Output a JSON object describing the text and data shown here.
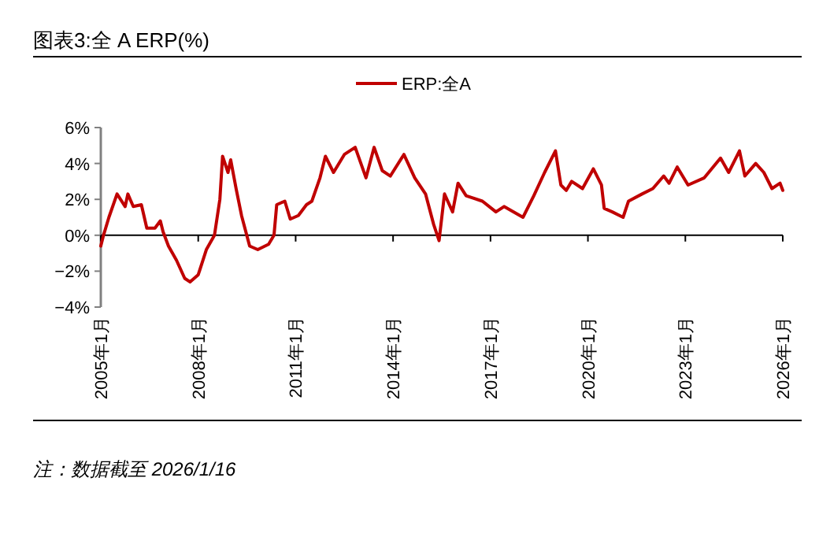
{
  "chart_data": {
    "type": "line",
    "title": "图表3:全 A ERP(%)",
    "legend": "top",
    "x": [
      "2005-01",
      "2005-02",
      "2005-04",
      "2005-07",
      "2005-10",
      "2005-11",
      "2006-01",
      "2006-04",
      "2006-06",
      "2006-09",
      "2006-11",
      "2006-12",
      "2007-02",
      "2007-05",
      "2007-08",
      "2007-10",
      "2008-01",
      "2008-04",
      "2008-07",
      "2008-09",
      "2008-10",
      "2008-12",
      "2009-01",
      "2009-03",
      "2009-05",
      "2009-08",
      "2009-11",
      "2010-03",
      "2010-05",
      "2010-06",
      "2010-09",
      "2010-11",
      "2011-02",
      "2011-05",
      "2011-07",
      "2011-10",
      "2011-12",
      "2012-03",
      "2012-07",
      "2012-11",
      "2013-03",
      "2013-06",
      "2013-09",
      "2013-12",
      "2014-05",
      "2014-09",
      "2015-01",
      "2015-04",
      "2015-06",
      "2015-08",
      "2015-11",
      "2016-01",
      "2016-04",
      "2016-10",
      "2017-03",
      "2017-06",
      "2018-01",
      "2018-05",
      "2018-09",
      "2019-01",
      "2019-03",
      "2019-05",
      "2019-07",
      "2019-11",
      "2020-03",
      "2020-06",
      "2020-07",
      "2020-10",
      "2021-02",
      "2021-04",
      "2021-09",
      "2022-01",
      "2022-05",
      "2022-07",
      "2022-10",
      "2023-02",
      "2023-08",
      "2024-02",
      "2024-05",
      "2024-09",
      "2024-11",
      "2025-03",
      "2025-06",
      "2025-09",
      "2025-12",
      "2026-01"
    ],
    "series": [
      {
        "name": "ERP:全A",
        "color": "#c00000",
        "values": [
          -0.6,
          0.0,
          1.0,
          2.3,
          1.6,
          2.3,
          1.6,
          1.7,
          0.4,
          0.4,
          0.8,
          0.2,
          -0.6,
          -1.4,
          -2.4,
          -2.6,
          -2.2,
          -0.8,
          0.0,
          2.0,
          4.4,
          3.5,
          4.2,
          2.6,
          1.1,
          -0.6,
          -0.8,
          -0.5,
          0.0,
          1.7,
          1.9,
          0.9,
          1.1,
          1.7,
          1.9,
          3.2,
          4.4,
          3.5,
          4.5,
          4.9,
          3.2,
          4.9,
          3.6,
          3.3,
          4.5,
          3.2,
          2.3,
          0.6,
          -0.3,
          2.3,
          1.3,
          2.9,
          2.2,
          1.9,
          1.3,
          1.6,
          1.0,
          2.2,
          3.5,
          4.7,
          2.8,
          2.5,
          3.0,
          2.6,
          3.7,
          2.8,
          1.5,
          1.3,
          1.0,
          1.9,
          2.3,
          2.6,
          3.3,
          2.9,
          3.8,
          2.8,
          3.2,
          4.3,
          3.5,
          4.7,
          3.3,
          4.0,
          3.5,
          2.6,
          2.9,
          2.5
        ]
      }
    ],
    "xlim": [
      "2005-01",
      "2026-01"
    ],
    "ylim": [
      -4,
      6
    ],
    "xticks": [
      {
        "value": "2005-01",
        "label": "2005年1月"
      },
      {
        "value": "2008-01",
        "label": "2008年1月"
      },
      {
        "value": "2011-01",
        "label": "2011年1月"
      },
      {
        "value": "2014-01",
        "label": "2014年1月"
      },
      {
        "value": "2017-01",
        "label": "2017年1月"
      },
      {
        "value": "2020-01",
        "label": "2020年1月"
      },
      {
        "value": "2023-01",
        "label": "2023年1月"
      },
      {
        "value": "2026-01",
        "label": "2026年1月"
      }
    ],
    "yticks": [
      {
        "value": -4,
        "label": "−4%"
      },
      {
        "value": -2,
        "label": "−2%"
      },
      {
        "value": 0,
        "label": "0%"
      },
      {
        "value": 2,
        "label": "2%"
      },
      {
        "value": 4,
        "label": "4%"
      },
      {
        "value": 6,
        "label": "6%"
      }
    ],
    "annotations": [
      "注：数据截至 2026/1/16"
    ]
  }
}
